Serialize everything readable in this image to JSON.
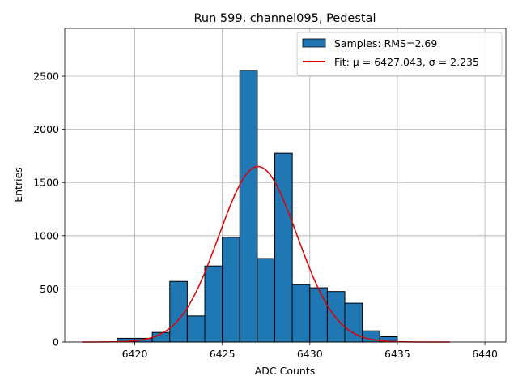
{
  "chart_data": {
    "type": "bar",
    "title": "Run 599, channel095, Pedestal",
    "xlabel": "ADC Counts",
    "ylabel": "Entries",
    "xlim": [
      6416.0,
      6441.2
    ],
    "ylim": [
      0,
      2950
    ],
    "xticks": [
      6420,
      6425,
      6430,
      6435,
      6440
    ],
    "yticks": [
      0,
      500,
      1000,
      1500,
      2000,
      2500
    ],
    "grid": true,
    "colors": {
      "bars": "#1f77b4",
      "bar_edge": "#000000",
      "fit": "#e00000",
      "grid": "#b0b0b0"
    },
    "histogram": {
      "name": "Samples: RMS=2.69",
      "bin_edges": [
        6419,
        6420,
        6421,
        6422,
        6423,
        6424,
        6425,
        6426,
        6427,
        6428,
        6429,
        6430,
        6431,
        6432,
        6433,
        6434,
        6435
      ],
      "counts": [
        35,
        35,
        90,
        570,
        245,
        715,
        985,
        2555,
        785,
        1775,
        540,
        510,
        475,
        365,
        105,
        50
      ]
    },
    "fit": {
      "name": "Fit: μ = 6427.043, σ = 2.235",
      "mu": 6427.043,
      "sigma": 2.235,
      "amplitude": 1650,
      "x_range": [
        6417,
        6438
      ]
    },
    "legend_position": "top-right",
    "legend": [
      {
        "label": "Samples: RMS=2.69",
        "kind": "patch"
      },
      {
        "label": "Fit: μ = 6427.043, σ = 2.235",
        "kind": "line"
      }
    ]
  }
}
